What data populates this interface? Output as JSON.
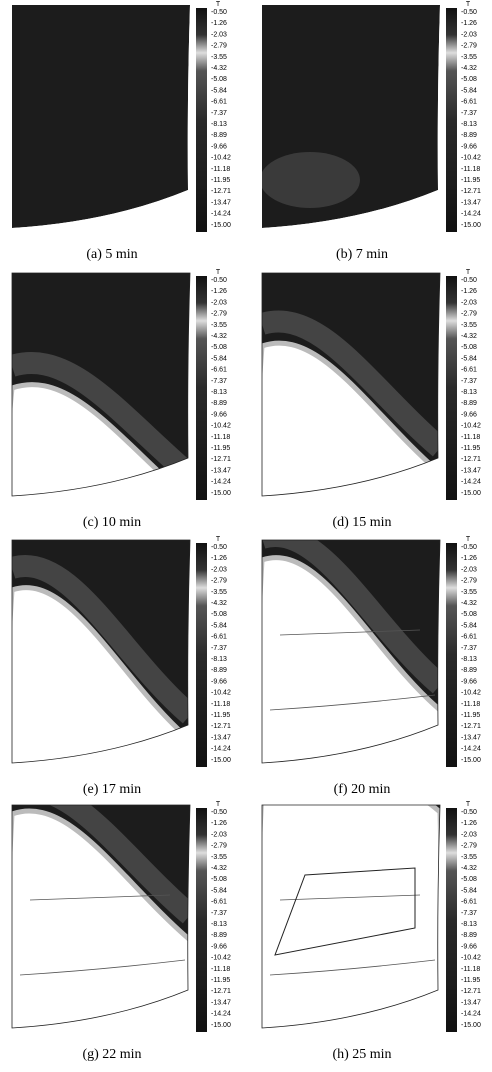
{
  "colorbar": {
    "title": "T",
    "labels": [
      "-0.50",
      "-1.26",
      "-2.03",
      "-2.79",
      "-3.55",
      "-4.32",
      "-5.08",
      "-5.84",
      "-6.61",
      "-7.37",
      "-8.13",
      "-8.89",
      "-9.66",
      "-10.42",
      "-11.18",
      "-11.95",
      "-12.71",
      "-13.47",
      "-14.24",
      "-15.00"
    ]
  },
  "panels": [
    {
      "caption": "(a) 5 min"
    },
    {
      "caption": "(b) 7 min"
    },
    {
      "caption": "(c) 10 min"
    },
    {
      "caption": "(d) 15 min"
    },
    {
      "caption": "(e) 17 min"
    },
    {
      "caption": "(f) 20 min"
    },
    {
      "caption": "(g) 22 min"
    },
    {
      "caption": "(h) 25 min"
    }
  ]
}
